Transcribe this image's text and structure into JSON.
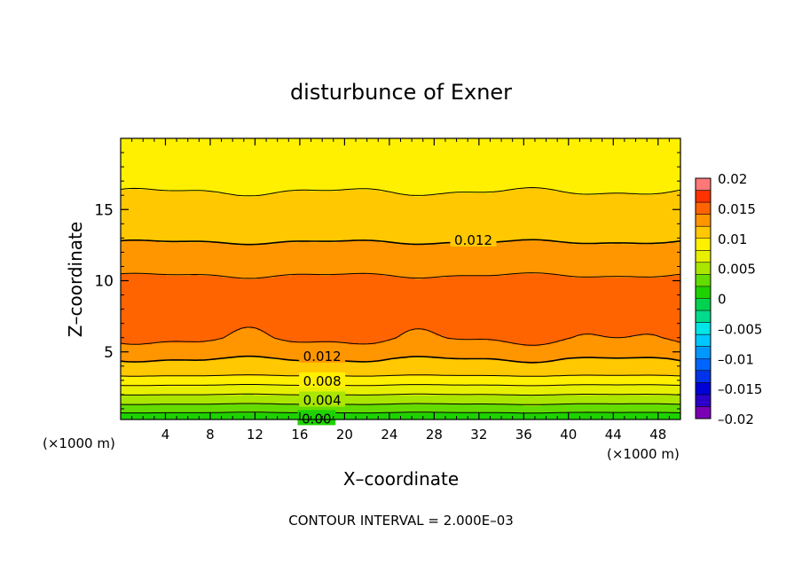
{
  "chart_data": {
    "type": "heatmap",
    "title": "disturbunce of Exner",
    "xlabel": "X–coordinate",
    "ylabel": "Z–coordinate",
    "x_unit_left": "(×1000 m)",
    "x_unit_right": "(×1000 m)",
    "xlim": [
      0,
      50
    ],
    "ylim": [
      0.25,
      20
    ],
    "x_ticks": [
      4,
      8,
      12,
      16,
      20,
      24,
      28,
      32,
      36,
      40,
      44,
      48
    ],
    "y_ticks": [
      5,
      10,
      15
    ],
    "footer": "CONTOUR INTERVAL = 2.000E–03",
    "contour_interval": 0.002,
    "colorbar": {
      "tick_labels": [
        "0.02",
        "0.015",
        "0.01",
        "0.005",
        "0",
        "–0.005",
        "–0.01",
        "–0.015",
        "–0.02"
      ],
      "tick_values": [
        0.02,
        0.015,
        0.01,
        0.005,
        0,
        -0.005,
        -0.01,
        -0.015,
        -0.02
      ],
      "levels": [
        -0.02,
        -0.018,
        -0.016,
        -0.014,
        -0.012,
        -0.01,
        -0.008,
        -0.006,
        -0.004,
        -0.002,
        0,
        0.002,
        0.004,
        0.006,
        0.008,
        0.01,
        0.012,
        0.014,
        0.016,
        0.018,
        0.02
      ],
      "colors": [
        "#7a00b4",
        "#2c00c8",
        "#0000d8",
        "#0032ea",
        "#0064ff",
        "#0098ff",
        "#00c8ff",
        "#00e6e6",
        "#00dc8c",
        "#00d250",
        "#1ed200",
        "#64dc00",
        "#aae600",
        "#e6f000",
        "#fff000",
        "#ffc800",
        "#ff9600",
        "#ff6400",
        "#ff3200",
        "#ff7878"
      ]
    },
    "profile_z": [
      0.25,
      0.6,
      1.0,
      1.5,
      2.0,
      2.5,
      3.0,
      3.5,
      4.0,
      4.5,
      5.2,
      6.0,
      7.0,
      8.0,
      9.0,
      10.0,
      11.0,
      12.0,
      13.0,
      14.0,
      15.0,
      16.0,
      17.0,
      18.0,
      19.0,
      20.0
    ],
    "profile_value": [
      0.0,
      0.0015,
      0.003,
      0.0045,
      0.006,
      0.0075,
      0.009,
      0.0105,
      0.0115,
      0.012,
      0.0132,
      0.0142,
      0.0148,
      0.015,
      0.0148,
      0.0143,
      0.0135,
      0.0125,
      0.0118,
      0.0112,
      0.0106,
      0.0101,
      0.0097,
      0.0093,
      0.009,
      0.0087
    ],
    "contour_labels": [
      {
        "text": "0.012",
        "x": 31.5,
        "z": 12.9
      },
      {
        "text": "0.012",
        "x": 18,
        "z": 4.75
      },
      {
        "text": "0.008",
        "x": 18,
        "z": 3.0
      },
      {
        "text": "0.004",
        "x": 18,
        "z": 1.65
      },
      {
        "text": "0.00",
        "x": 17.5,
        "z": 0.35
      }
    ]
  }
}
